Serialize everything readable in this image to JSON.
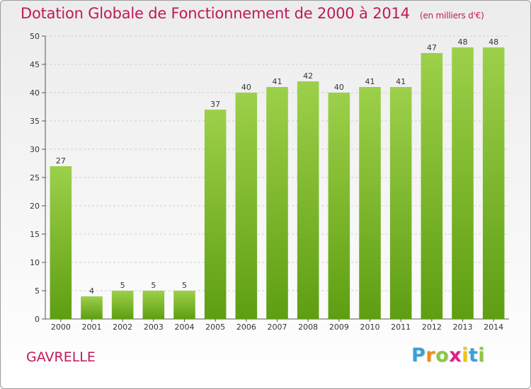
{
  "header": {
    "title": "Dotation Globale de Fonctionnement de 2000 à 2014",
    "unit_note": "(en milliers d'€)"
  },
  "footer": {
    "commune": "GAVRELLE",
    "logo_letters": [
      "P",
      "r",
      "o",
      "x",
      "i",
      "t",
      "i"
    ],
    "logo_colors": [
      "#3aa0d8",
      "#f08c1a",
      "#8cc63f",
      "#e0218a",
      "#f2c500",
      "#3aa0d8",
      "#8cc63f"
    ]
  },
  "chart_data": {
    "type": "bar",
    "title": "Dotation Globale de Fonctionnement de 2000 à 2014",
    "subtitle": "(en milliers d'€)",
    "xlabel": "",
    "ylabel": "",
    "categories": [
      "2000",
      "2001",
      "2002",
      "2003",
      "2004",
      "2005",
      "2006",
      "2007",
      "2008",
      "2009",
      "2010",
      "2011",
      "2012",
      "2013",
      "2014"
    ],
    "values": [
      27,
      4,
      5,
      5,
      5,
      37,
      40,
      41,
      42,
      40,
      41,
      41,
      47,
      48,
      48
    ],
    "ylim": [
      0,
      50
    ],
    "yticks": [
      0,
      5,
      10,
      15,
      20,
      25,
      30,
      35,
      40,
      45,
      50
    ],
    "grid": true,
    "bar_color_top": "#9dd04a",
    "bar_color_bottom": "#5e9e12"
  }
}
